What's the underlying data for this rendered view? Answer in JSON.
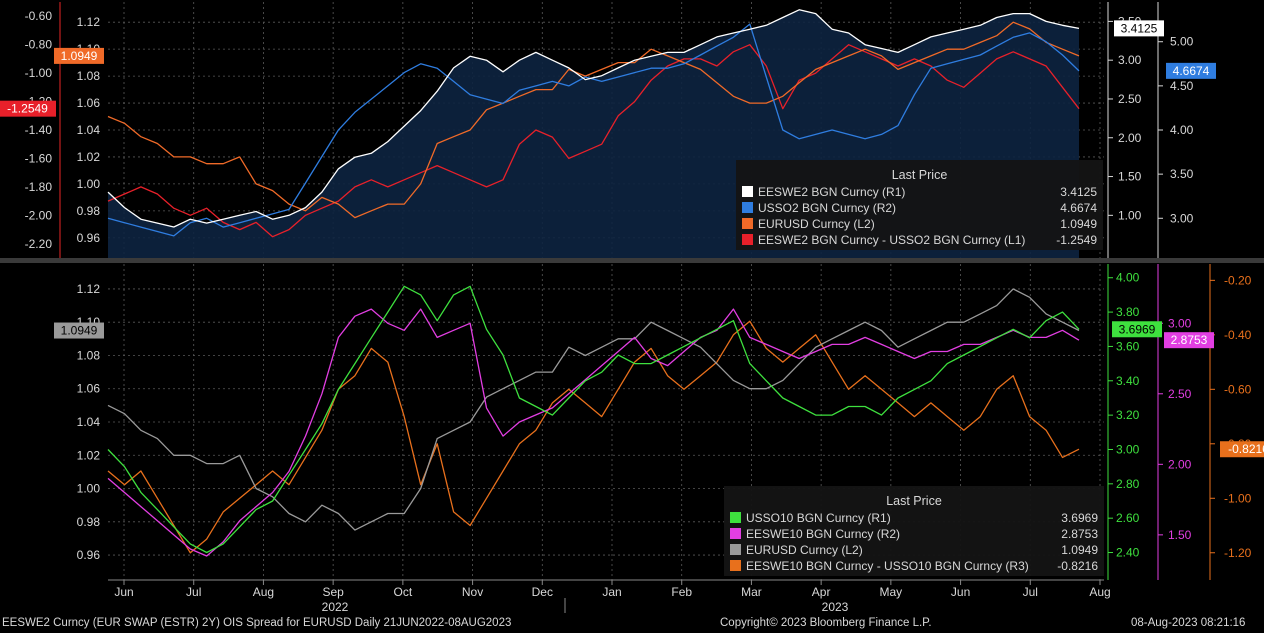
{
  "chart_data": [
    {
      "type": "line",
      "panel": "top",
      "grid": true,
      "legend_title": "Last Price",
      "legend_position": "bottom-right",
      "axes": {
        "L1": {
          "side": "left-outer",
          "ylim": [
            -2.3,
            -0.5
          ],
          "ticks": [
            -0.6,
            -0.8,
            -1.0,
            -1.2,
            -1.4,
            -1.6,
            -1.8,
            -2.0,
            -2.2
          ],
          "tick_labels": [
            "-0.60",
            "-0.80",
            "-1.00",
            "-1.20",
            "-1.40",
            "-1.60",
            "-1.80",
            "-2.00",
            "-2.20"
          ]
        },
        "L2": {
          "side": "left-inner",
          "ylim": [
            0.945,
            1.135
          ],
          "ticks": [
            0.96,
            0.98,
            1.0,
            1.02,
            1.04,
            1.06,
            1.08,
            1.1,
            1.12
          ],
          "tick_labels": [
            "0.96",
            "0.98",
            "1.00",
            "1.02",
            "1.04",
            "1.06",
            "1.08",
            "1.10",
            "1.12"
          ]
        },
        "R1": {
          "side": "right-inner",
          "ylim": [
            0.45,
            3.75
          ],
          "ticks": [
            1.0,
            1.5,
            2.0,
            2.5,
            3.0,
            3.5
          ],
          "tick_labels": [
            "1.00",
            "1.50",
            "2.00",
            "2.50",
            "3.00",
            "3.50"
          ]
        },
        "R2": {
          "side": "right-outer",
          "ylim": [
            2.55,
            5.45
          ],
          "ticks": [
            3.0,
            3.5,
            4.0,
            4.5,
            5.0
          ],
          "tick_labels": [
            "3.00",
            "3.50",
            "4.00",
            "4.50",
            "5.00"
          ]
        }
      },
      "series": [
        {
          "name": "EESWE2 BGN Curncy",
          "axis_label": "(R1)",
          "axis": "R1",
          "last_value": "3.4125",
          "color": "#ffffff",
          "fill": "#0d2340",
          "values": [
            1.3,
            1.1,
            0.95,
            0.9,
            0.85,
            0.95,
            0.9,
            0.95,
            1.0,
            1.05,
            0.95,
            1.0,
            1.1,
            1.3,
            1.6,
            1.75,
            1.8,
            1.95,
            2.15,
            2.35,
            2.6,
            2.9,
            3.05,
            3.0,
            2.85,
            3.0,
            3.1,
            3.0,
            2.9,
            2.75,
            2.8,
            2.9,
            3.0,
            3.05,
            3.1,
            3.1,
            3.2,
            3.3,
            3.35,
            3.4,
            3.45,
            3.55,
            3.65,
            3.6,
            3.4,
            3.35,
            3.2,
            3.15,
            3.1,
            3.2,
            3.3,
            3.35,
            3.4,
            3.45,
            3.55,
            3.6,
            3.6,
            3.5,
            3.45,
            3.41
          ]
        },
        {
          "name": "USSO2 BGN Curncy",
          "axis_label": "(R2)",
          "axis": "R2",
          "last_value": "4.6674",
          "color": "#2f7de0",
          "values": [
            3.0,
            2.95,
            2.9,
            2.85,
            2.8,
            2.95,
            3.0,
            2.9,
            2.95,
            3.0,
            3.05,
            3.1,
            3.4,
            3.7,
            4.0,
            4.2,
            4.35,
            4.5,
            4.65,
            4.75,
            4.7,
            4.55,
            4.4,
            4.35,
            4.3,
            4.45,
            4.5,
            4.55,
            4.5,
            4.6,
            4.55,
            4.6,
            4.65,
            4.7,
            4.7,
            4.75,
            4.85,
            4.95,
            5.05,
            5.2,
            4.6,
            4.0,
            3.9,
            3.95,
            4.0,
            3.95,
            3.9,
            3.95,
            4.05,
            4.4,
            4.7,
            4.75,
            4.8,
            4.85,
            4.95,
            5.05,
            5.1,
            5.0,
            4.85,
            4.67
          ]
        },
        {
          "name": "EURUSD Curncy",
          "axis_label": "(L2)",
          "axis": "L2",
          "last_value": "1.0949",
          "color": "#f06a28",
          "values": [
            1.05,
            1.045,
            1.035,
            1.03,
            1.02,
            1.02,
            1.015,
            1.015,
            1.02,
            1.0,
            0.995,
            0.985,
            0.98,
            0.99,
            0.985,
            0.975,
            0.98,
            0.985,
            0.985,
            1.0,
            1.03,
            1.035,
            1.04,
            1.055,
            1.06,
            1.065,
            1.07,
            1.07,
            1.085,
            1.08,
            1.085,
            1.09,
            1.09,
            1.1,
            1.095,
            1.09,
            1.085,
            1.075,
            1.065,
            1.06,
            1.06,
            1.065,
            1.075,
            1.085,
            1.09,
            1.095,
            1.1,
            1.095,
            1.085,
            1.09,
            1.095,
            1.1,
            1.1,
            1.105,
            1.11,
            1.12,
            1.115,
            1.105,
            1.1,
            1.095
          ]
        },
        {
          "name": "EESWE2 BGN Curncy - USSO2 BGN Curncy",
          "axis_label": "(L1)",
          "axis": "L1",
          "last_value": "-1.2549",
          "color": "#e8202a",
          "values": [
            -1.9,
            -1.85,
            -1.8,
            -1.85,
            -1.95,
            -2.0,
            -1.95,
            -2.05,
            -2.1,
            -2.05,
            -2.15,
            -2.1,
            -2.0,
            -1.95,
            -1.9,
            -1.8,
            -1.75,
            -1.8,
            -1.75,
            -1.7,
            -1.65,
            -1.7,
            -1.75,
            -1.8,
            -1.75,
            -1.5,
            -1.4,
            -1.45,
            -1.6,
            -1.55,
            -1.5,
            -1.3,
            -1.2,
            -1.05,
            -0.95,
            -0.9,
            -0.9,
            -0.95,
            -0.85,
            -0.8,
            -0.95,
            -1.25,
            -1.05,
            -1.0,
            -0.9,
            -0.8,
            -0.85,
            -0.9,
            -0.95,
            -0.9,
            -0.95,
            -1.05,
            -1.1,
            -1.0,
            -0.9,
            -0.85,
            -0.9,
            -0.95,
            -1.1,
            -1.25
          ]
        }
      ]
    },
    {
      "type": "line",
      "panel": "bottom",
      "grid": true,
      "legend_title": "Last Price",
      "legend_position": "bottom-right",
      "axes": {
        "L2": {
          "side": "left",
          "ylim": [
            0.945,
            1.135
          ],
          "ticks": [
            0.96,
            0.98,
            1.0,
            1.02,
            1.04,
            1.06,
            1.08,
            1.1,
            1.12
          ],
          "tick_labels": [
            "0.96",
            "0.98",
            "1.00",
            "1.02",
            "1.04",
            "1.06",
            "1.08",
            "1.10",
            "1.12"
          ]
        },
        "R1": {
          "side": "right-inner",
          "ylim": [
            2.24,
            4.08
          ],
          "ticks": [
            2.4,
            2.6,
            2.8,
            3.0,
            3.2,
            3.4,
            3.6,
            3.8,
            4.0
          ],
          "tick_labels": [
            "2.40",
            "2.60",
            "2.80",
            "3.00",
            "3.20",
            "3.40",
            "3.60",
            "3.80",
            "4.00"
          ]
        },
        "R2": {
          "side": "right-middle",
          "ylim": [
            1.18,
            3.42
          ],
          "ticks": [
            1.5,
            2.0,
            2.5,
            3.0
          ],
          "tick_labels": [
            "1.50",
            "2.00",
            "2.50",
            "3.00"
          ]
        },
        "R3": {
          "side": "right-outer",
          "ylim": [
            -1.3,
            -0.14
          ],
          "ticks": [
            -0.2,
            -0.4,
            -0.6,
            -0.8,
            -1.0,
            -1.2
          ],
          "tick_labels": [
            "-0.20",
            "-0.40",
            "-0.60",
            "-0.80",
            "-1.00",
            "-1.20"
          ]
        }
      },
      "series": [
        {
          "name": "USSO10 BGN Curncy",
          "axis_label": "(R1)",
          "axis": "R1",
          "last_value": "3.6969",
          "color": "#3ee03e",
          "values": [
            3.0,
            2.9,
            2.75,
            2.65,
            2.55,
            2.45,
            2.4,
            2.45,
            2.55,
            2.65,
            2.7,
            2.85,
            3.0,
            3.15,
            3.35,
            3.5,
            3.65,
            3.8,
            3.95,
            3.9,
            3.75,
            3.9,
            3.95,
            3.7,
            3.55,
            3.3,
            3.25,
            3.2,
            3.3,
            3.4,
            3.45,
            3.55,
            3.5,
            3.5,
            3.55,
            3.6,
            3.65,
            3.7,
            3.75,
            3.5,
            3.4,
            3.3,
            3.25,
            3.2,
            3.2,
            3.25,
            3.25,
            3.2,
            3.3,
            3.35,
            3.4,
            3.5,
            3.55,
            3.6,
            3.65,
            3.7,
            3.65,
            3.75,
            3.8,
            3.7
          ]
        },
        {
          "name": "EESWE10 BGN Curncy",
          "axis_label": "(R2)",
          "axis": "R2",
          "last_value": "2.8753",
          "color": "#e23ee2",
          "values": [
            1.9,
            1.8,
            1.7,
            1.6,
            1.5,
            1.4,
            1.35,
            1.45,
            1.6,
            1.7,
            1.8,
            1.95,
            2.2,
            2.5,
            2.9,
            3.05,
            3.1,
            3.0,
            2.95,
            3.1,
            2.9,
            2.95,
            3.0,
            2.4,
            2.2,
            2.3,
            2.35,
            2.4,
            2.5,
            2.6,
            2.7,
            2.8,
            2.9,
            2.75,
            2.7,
            2.8,
            2.9,
            2.95,
            3.1,
            2.9,
            2.85,
            2.8,
            2.75,
            2.8,
            2.85,
            2.85,
            2.9,
            2.85,
            2.8,
            2.75,
            2.8,
            2.8,
            2.85,
            2.85,
            2.9,
            2.95,
            2.9,
            2.9,
            2.95,
            2.88
          ]
        },
        {
          "name": "EURUSD Curncy",
          "axis_label": "(L2)",
          "axis": "L2",
          "last_value": "1.0949",
          "color": "#9a9a9a",
          "values": [
            1.05,
            1.045,
            1.035,
            1.03,
            1.02,
            1.02,
            1.015,
            1.015,
            1.02,
            1.0,
            0.995,
            0.985,
            0.98,
            0.99,
            0.985,
            0.975,
            0.98,
            0.985,
            0.985,
            1.0,
            1.03,
            1.035,
            1.04,
            1.055,
            1.06,
            1.065,
            1.07,
            1.07,
            1.085,
            1.08,
            1.085,
            1.09,
            1.09,
            1.1,
            1.095,
            1.09,
            1.085,
            1.075,
            1.065,
            1.06,
            1.06,
            1.065,
            1.075,
            1.085,
            1.09,
            1.095,
            1.1,
            1.095,
            1.085,
            1.09,
            1.095,
            1.1,
            1.1,
            1.105,
            1.11,
            1.12,
            1.115,
            1.105,
            1.1,
            1.095
          ]
        },
        {
          "name": "EESWE10 BGN Curncy - USSO10 BGN Curncy",
          "axis_label": "(R3)",
          "axis": "R3",
          "last_value": "-0.8216",
          "color": "#e8701c",
          "values": [
            -0.9,
            -0.95,
            -0.9,
            -1.0,
            -1.1,
            -1.2,
            -1.15,
            -1.05,
            -1.0,
            -0.95,
            -0.9,
            -0.95,
            -0.85,
            -0.75,
            -0.6,
            -0.55,
            -0.45,
            -0.5,
            -0.7,
            -0.95,
            -0.8,
            -1.05,
            -1.1,
            -1.0,
            -0.9,
            -0.8,
            -0.75,
            -0.65,
            -0.6,
            -0.65,
            -0.7,
            -0.6,
            -0.5,
            -0.45,
            -0.55,
            -0.6,
            -0.55,
            -0.5,
            -0.4,
            -0.35,
            -0.45,
            -0.5,
            -0.45,
            -0.4,
            -0.5,
            -0.6,
            -0.55,
            -0.6,
            -0.65,
            -0.7,
            -0.65,
            -0.7,
            -0.75,
            -0.7,
            -0.6,
            -0.55,
            -0.7,
            -0.75,
            -0.85,
            -0.82
          ]
        }
      ]
    }
  ],
  "x_axis": {
    "months": [
      "Jun",
      "Jul",
      "Aug",
      "Sep",
      "Oct",
      "Nov",
      "Dec",
      "Jan",
      "Feb",
      "Mar",
      "Apr",
      "May",
      "Jun",
      "Jul",
      "Aug"
    ],
    "years": [
      "2022",
      "2023"
    ]
  },
  "footer": {
    "left": "EESWE2 Curncy (EUR SWAP (ESTR) 2Y) OIS Spread for EURUSD  Daily 21JUN2022-08AUG2023",
    "center": "Copyright© 2023 Bloomberg Finance L.P.",
    "right": "08-Aug-2023 08:21:16"
  }
}
